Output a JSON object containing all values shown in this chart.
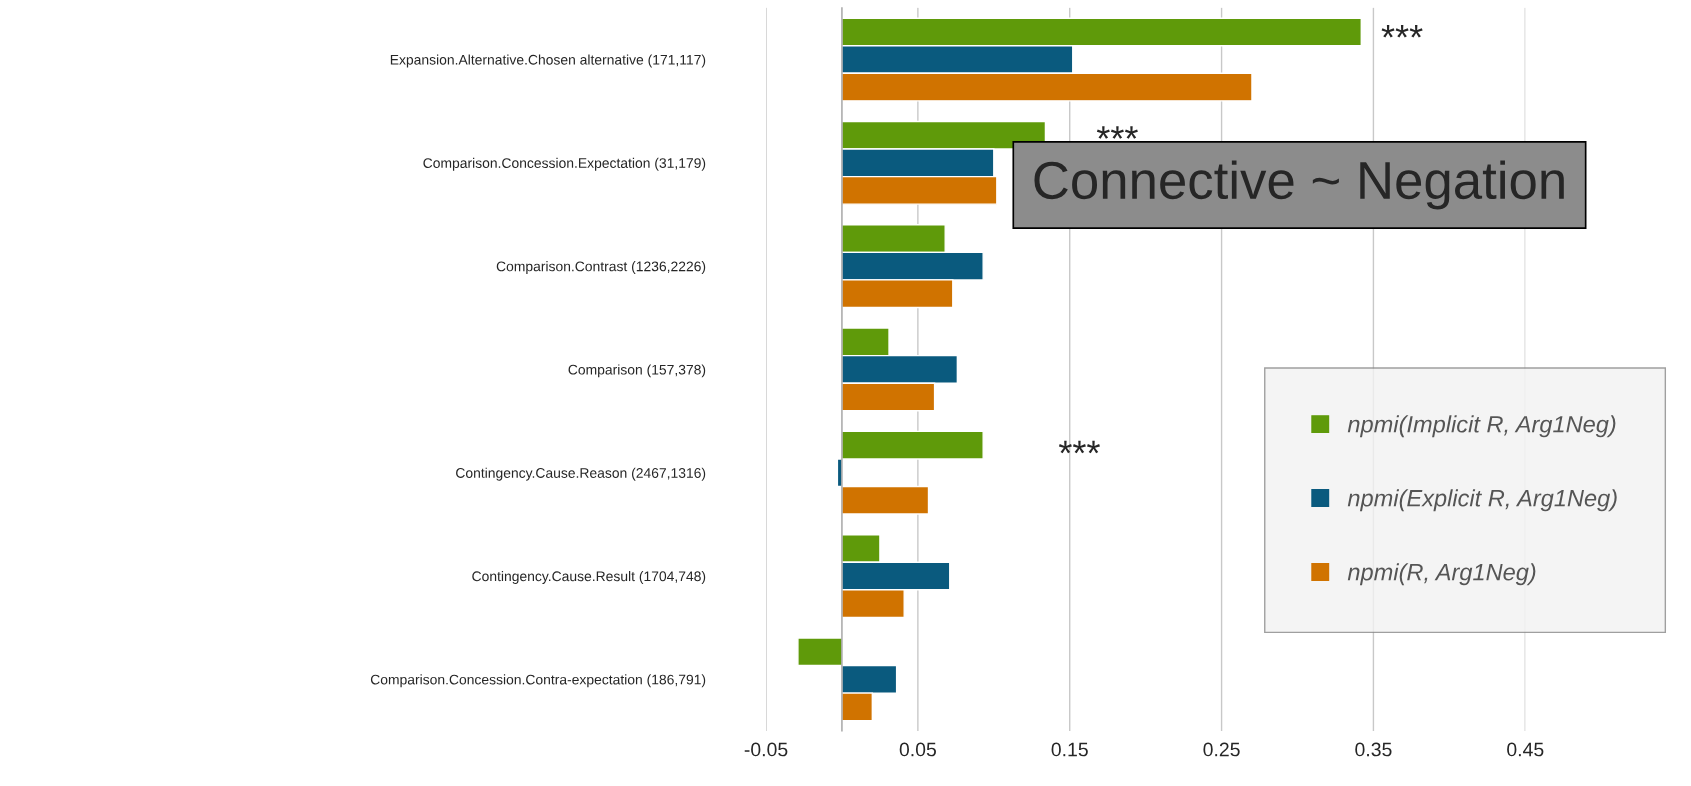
{
  "chart_data": {
    "type": "bar",
    "orientation": "horizontal",
    "categories": [
      "Expansion.Alternative.Chosen alternative (171,117)",
      "Comparison.Concession.Expectation (31,179)",
      "Comparison.Contrast (1236,2226)",
      "Comparison (157,378)",
      "Contingency.Cause.Reason (2467,1316)",
      "Contingency.Cause.Result (1704,748)",
      "Comparison.Concession.Contra-expectation (186,791)"
    ],
    "series": [
      {
        "name": "npmi(Implicit R, Arg1Neg)",
        "color": "#5f9a0a",
        "values": [
          0.342,
          0.134,
          0.068,
          0.031,
          0.093,
          0.025,
          -0.029
        ]
      },
      {
        "name": "npmi(Explicit R, Arg1Neg)",
        "color": "#0a5a7e",
        "values": [
          0.152,
          0.1,
          0.093,
          0.076,
          -0.003,
          0.071,
          0.036
        ]
      },
      {
        "name": "npmi(R, Arg1Neg)",
        "color": "#d07300",
        "values": [
          0.27,
          0.102,
          0.073,
          0.061,
          0.057,
          0.041,
          0.02
        ]
      }
    ],
    "xlim": [
      -0.05,
      0.45
    ],
    "xticks": [
      -0.05,
      0.05,
      0.15,
      0.25,
      0.35,
      0.45
    ],
    "grid": "x",
    "legend": "bottom right",
    "annotations": [
      "***",
      "***",
      "***",
      "Connective ~ Negation"
    ]
  }
}
